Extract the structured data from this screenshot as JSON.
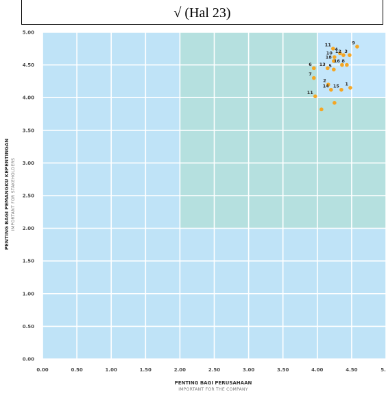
{
  "header": {
    "title": "√ (Hal 23)"
  },
  "chart_data": {
    "type": "scatter",
    "xlim": [
      0,
      5
    ],
    "ylim": [
      0,
      5
    ],
    "x_ticks": [
      "0.00",
      "0.50",
      "1.00",
      "1.50",
      "2.00",
      "2.50",
      "3.00",
      "3.50",
      "4.00",
      "4.50",
      "5."
    ],
    "y_ticks": [
      "0.00",
      "0.50",
      "1.00",
      "1.50",
      "2.00",
      "2.50",
      "3.00",
      "3.50",
      "4.00",
      "4.50",
      "5.00"
    ],
    "xlabel": "PENTING BAGI PERUSAHAAN",
    "xlabel_sub": "IMPORTANT FOR THE COMPANY",
    "ylabel": "PENTING BAGI PEMANGKU KEPENTINGAN",
    "ylabel_sub": "IMPORTANT FOR STAKEHOLDERS",
    "grid": true,
    "regions": [
      {
        "name": "background",
        "x": [
          0,
          5
        ],
        "y": [
          0,
          5
        ],
        "color": "#bfe3f7"
      },
      {
        "name": "medium",
        "x": [
          2,
          5
        ],
        "y": [
          2,
          5
        ],
        "color": "#b5e0df"
      },
      {
        "name": "high",
        "x": [
          4,
          5
        ],
        "y": [
          4,
          5
        ],
        "color": "#c4e6fb"
      }
    ],
    "point_color": "#f5a623",
    "points": [
      {
        "label": "9",
        "x": 4.58,
        "y": 4.78
      },
      {
        "label": "11",
        "x": 4.23,
        "y": 4.75
      },
      {
        "label": "4",
        "x": 4.33,
        "y": 4.68
      },
      {
        "label": "12",
        "x": 4.38,
        "y": 4.65
      },
      {
        "label": "3",
        "x": 4.47,
        "y": 4.65
      },
      {
        "label": "10",
        "x": 4.25,
        "y": 4.62
      },
      {
        "label": "18",
        "x": 4.24,
        "y": 4.56
      },
      {
        "label": "16",
        "x": 4.36,
        "y": 4.5
      },
      {
        "label": "8",
        "x": 4.43,
        "y": 4.5
      },
      {
        "label": "6",
        "x": 3.95,
        "y": 4.45
      },
      {
        "label": "13",
        "x": 4.15,
        "y": 4.45
      },
      {
        "label": "5",
        "x": 4.24,
        "y": 4.43
      },
      {
        "label": "7",
        "x": 3.95,
        "y": 4.3
      },
      {
        "label": "2",
        "x": 4.16,
        "y": 4.2
      },
      {
        "label": "1",
        "x": 4.48,
        "y": 4.15
      },
      {
        "label": "14",
        "x": 4.2,
        "y": 4.12
      },
      {
        "label": "15",
        "x": 4.35,
        "y": 4.12
      },
      {
        "label": "11",
        "x": 3.97,
        "y": 4.02
      },
      {
        "label": "",
        "x": 4.25,
        "y": 3.92
      },
      {
        "label": "",
        "x": 4.06,
        "y": 3.82
      }
    ]
  }
}
